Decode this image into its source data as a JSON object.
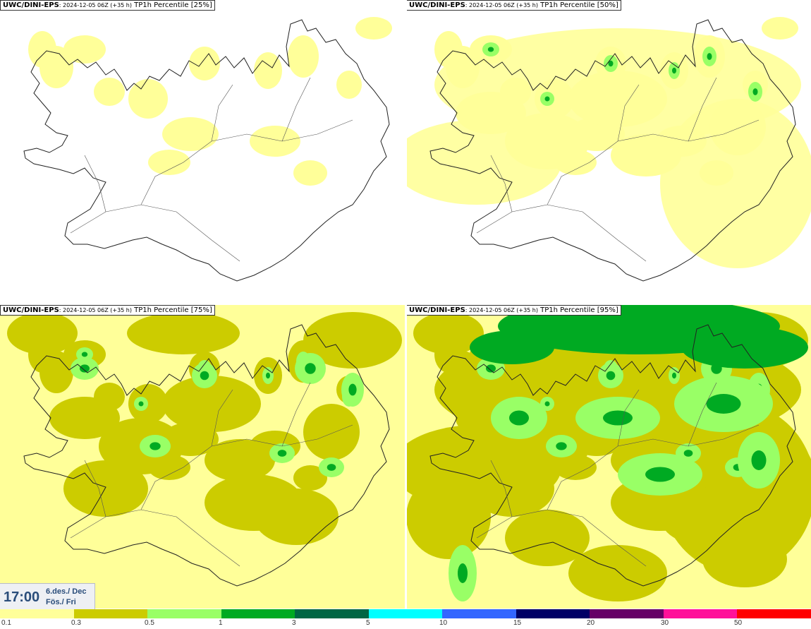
{
  "panels": [
    {
      "model": "UWC/DINI-EPS",
      "run": ": 2024-12-05 06Z (+35 h)",
      "product": " TP1h Percentile [25%]",
      "level": 0
    },
    {
      "model": "UWC/DINI-EPS",
      "run": ": 2024-12-05 06Z (+35 h)",
      "product": " TP1h Percentile [50%]",
      "level": 1
    },
    {
      "model": "UWC/DINI-EPS",
      "run": ": 2024-12-05 06Z (+35 h)",
      "product": " TP1h Percentile [75%]",
      "level": 2
    },
    {
      "model": "UWC/DINI-EPS",
      "run": ": 2024-12-05 06Z (+35 h)",
      "product": " TP1h Percentile [95%]",
      "level": 3
    }
  ],
  "time_box": {
    "time": "17:00",
    "date_line1": "6.des./ Dec",
    "date_line2": "Fös./ Fri"
  },
  "legend": {
    "colors": [
      "#ffff99",
      "#cccc00",
      "#99ff66",
      "#00aa22",
      "#006644",
      "#00ffff",
      "#3366ff",
      "#000066",
      "#660066",
      "#ff1199",
      "#ff0000"
    ],
    "labels": [
      "0.1",
      "0.3",
      "0.5",
      "1",
      "3",
      "5",
      "10",
      "15",
      "20",
      "30",
      "50"
    ]
  }
}
